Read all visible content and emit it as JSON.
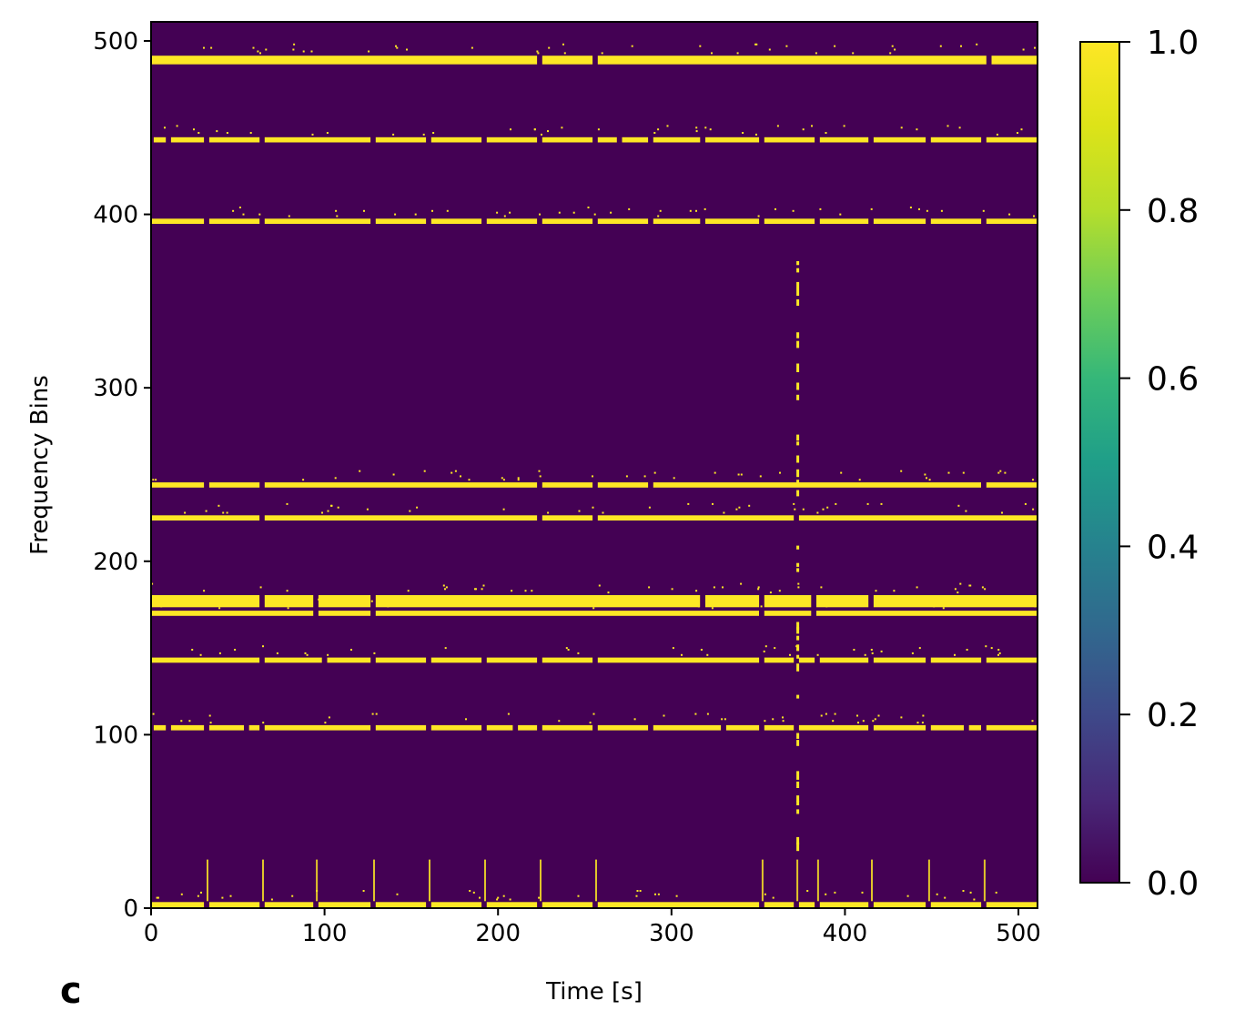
{
  "panel_label": "c",
  "chart_data": {
    "type": "heatmap",
    "title": "",
    "xlabel": "Time [s]",
    "ylabel": "Frequency Bins",
    "xlim": [
      0,
      511
    ],
    "ylim": [
      0,
      511
    ],
    "xticks": [
      0,
      100,
      200,
      300,
      400,
      500
    ],
    "yticks": [
      0,
      100,
      200,
      300,
      400,
      500
    ],
    "colormap": "viridis",
    "colorbar": {
      "range": [
        0.0,
        1.0
      ],
      "ticks": [
        "0.0",
        "0.2",
        "0.4",
        "0.6",
        "0.8",
        "1.0"
      ],
      "low_color": "#440154",
      "high_color": "#fde725"
    },
    "grid": false,
    "cell_values": "binary (0 or 1)",
    "active_frequency_bands": [
      {
        "bin_start": 174,
        "bin_end": 180,
        "gaps_at_time": [
          64,
          95,
          128,
          318,
          352,
          382,
          415
        ]
      },
      {
        "bin_start": 169,
        "bin_end": 171,
        "gaps_at_time": [
          95,
          128,
          352,
          382
        ]
      },
      {
        "bin_start": 224,
        "bin_end": 226,
        "gaps_at_time": [
          64,
          224,
          256,
          372
        ]
      },
      {
        "bin_start": 243,
        "bin_end": 245,
        "gaps_at_time": [
          32,
          64,
          224,
          256,
          288,
          480
        ]
      },
      {
        "bin_start": 142,
        "bin_end": 144,
        "gaps_at_time": [
          64,
          100,
          128,
          160,
          192,
          224,
          256,
          352,
          372,
          384,
          415,
          448,
          480
        ]
      },
      {
        "bin_start": 103,
        "bin_end": 105,
        "gaps_at_time": [
          0,
          10,
          32,
          55,
          64,
          128,
          160,
          192,
          210,
          224,
          256,
          288,
          330,
          352,
          372,
          415,
          448,
          470,
          480
        ]
      },
      {
        "bin_start": 395,
        "bin_end": 397,
        "gaps_at_time": [
          32,
          64,
          128,
          160,
          192,
          224,
          256,
          288,
          318,
          352,
          384,
          415,
          448,
          480
        ]
      },
      {
        "bin_start": 442,
        "bin_end": 444,
        "gaps_at_time": [
          0,
          10,
          32,
          64,
          128,
          160,
          192,
          224,
          256,
          270,
          288,
          318,
          352,
          384,
          415,
          448,
          480
        ]
      },
      {
        "bin_start": 487,
        "bin_end": 491,
        "gaps_at_time": [
          224,
          256,
          483
        ]
      },
      {
        "bin_start": 1,
        "bin_end": 3,
        "gaps_at_time": [
          32,
          64,
          95,
          128,
          160,
          192,
          224,
          256,
          352,
          372,
          384,
          415,
          448,
          480
        ]
      }
    ],
    "vertical_burst": {
      "time": 372,
      "bin_start": 30,
      "bin_end": 380
    }
  }
}
